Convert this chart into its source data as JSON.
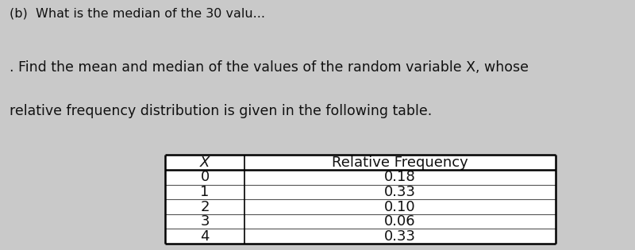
{
  "line0": "(b)  What is the median of the 30 valu...",
  "line1a": ". Find the mean and median of the values of the random variable ",
  "line1b": "X",
  "line1c": ", whose",
  "line2": "relative frequency distribution is given in the following table.",
  "col1_header": "X",
  "col2_header": "Relative Frequency",
  "x_values": [
    "0",
    "1",
    "2",
    "3",
    "4"
  ],
  "rel_freq_values": [
    "0.18",
    "0.33",
    "0.10",
    "0.06",
    "0.33"
  ],
  "bg_color": "#c9c9c9",
  "text_color": "#111111",
  "font_size_top": 11.5,
  "font_size_body": 12.5,
  "font_size_table": 13
}
